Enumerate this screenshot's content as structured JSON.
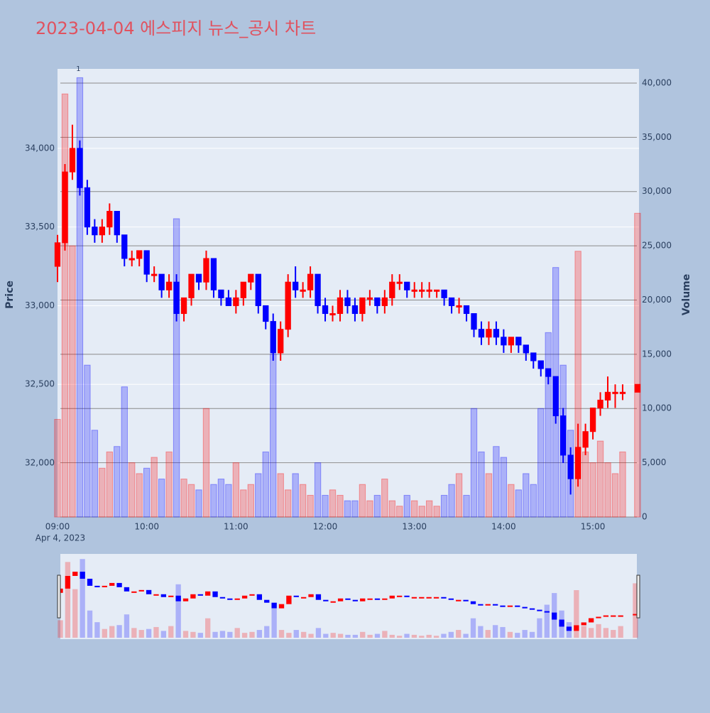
{
  "chart_data": {
    "type": "candlestick",
    "title": "2023-04-04 에스피지 뉴스_공시 차트",
    "y_label": "Price",
    "y2_label": "Volume",
    "date_label": "Apr 4, 2023",
    "annotation": {
      "x": "09:15",
      "text": "1"
    },
    "up_color": "#ff0000",
    "down_color": "#0000ff",
    "grid": true,
    "range_slider": true,
    "xlim": [
      "09:00",
      "15:31"
    ],
    "xticks": [
      "09:00",
      "10:00",
      "11:00",
      "12:00",
      "13:00",
      "14:00",
      "15:00"
    ],
    "ylim": [
      31657,
      34505
    ],
    "yticks": [
      {
        "value": 32000,
        "label": "32,000"
      },
      {
        "value": 32500,
        "label": "32,500"
      },
      {
        "value": 33000,
        "label": "33,000"
      },
      {
        "value": 33500,
        "label": "33,500"
      },
      {
        "value": 34000,
        "label": "34,000"
      }
    ],
    "y2lim": [
      0,
      41309
    ],
    "y2ticks": [
      0,
      {
        "value": 5000,
        "label": "5,000"
      },
      {
        "value": 10000,
        "label": "10,000"
      },
      {
        "value": 15000,
        "label": "15,000"
      },
      {
        "value": 20000,
        "label": "20,000"
      },
      {
        "value": 25000,
        "label": "25,000"
      },
      {
        "value": 30000,
        "label": "30,000"
      },
      {
        "value": 35000,
        "label": "35,000"
      },
      {
        "value": 40000,
        "label": "40,000"
      }
    ],
    "x": [
      "09:00",
      "09:05",
      "09:10",
      "09:15",
      "09:20",
      "09:25",
      "09:30",
      "09:35",
      "09:40",
      "09:45",
      "09:50",
      "09:55",
      "10:00",
      "10:05",
      "10:10",
      "10:15",
      "10:20",
      "10:25",
      "10:30",
      "10:35",
      "10:40",
      "10:45",
      "10:50",
      "10:55",
      "11:00",
      "11:05",
      "11:10",
      "11:15",
      "11:20",
      "11:25",
      "11:30",
      "11:35",
      "11:40",
      "11:45",
      "11:50",
      "11:55",
      "12:00",
      "12:05",
      "12:10",
      "12:15",
      "12:20",
      "12:25",
      "12:30",
      "12:35",
      "12:40",
      "12:45",
      "12:50",
      "12:55",
      "13:00",
      "13:05",
      "13:10",
      "13:15",
      "13:20",
      "13:25",
      "13:30",
      "13:35",
      "13:40",
      "13:45",
      "13:50",
      "13:55",
      "14:00",
      "14:05",
      "14:10",
      "14:15",
      "14:20",
      "14:25",
      "14:30",
      "14:35",
      "14:40",
      "14:45",
      "14:50",
      "14:55",
      "15:00",
      "15:05",
      "15:10",
      "15:15",
      "15:20",
      "15:30"
    ],
    "open": [
      33250,
      33400,
      33850,
      34000,
      33750,
      33500,
      33450,
      33500,
      33600,
      33450,
      33300,
      33300,
      33350,
      33200,
      33200,
      33100,
      33150,
      32950,
      33050,
      33200,
      33150,
      33300,
      33100,
      33050,
      33000,
      33050,
      33150,
      33200,
      33000,
      32900,
      32700,
      32850,
      33150,
      33100,
      33100,
      33200,
      33000,
      32950,
      32950,
      33050,
      33000,
      32950,
      33050,
      33050,
      33000,
      33050,
      33150,
      33150,
      33100,
      33100,
      33100,
      33100,
      33100,
      33050,
      33000,
      33000,
      32950,
      32850,
      32800,
      32850,
      32800,
      32750,
      32800,
      32750,
      32700,
      32650,
      32600,
      32550,
      32300,
      32050,
      31900,
      32100,
      32200,
      32350,
      32400,
      32450,
      32450,
      32450
    ],
    "high": [
      33450,
      33900,
      34150,
      34050,
      33800,
      33550,
      33550,
      33650,
      33600,
      33450,
      33350,
      33350,
      33350,
      33250,
      33200,
      33200,
      33200,
      33050,
      33200,
      33200,
      33350,
      33300,
      33100,
      33100,
      33100,
      33150,
      33200,
      33200,
      33000,
      32950,
      32900,
      33200,
      33250,
      33150,
      33250,
      33200,
      33050,
      33000,
      33100,
      33100,
      33050,
      33050,
      33100,
      33050,
      33100,
      33200,
      33200,
      33150,
      33150,
      33150,
      33150,
      33100,
      33100,
      33050,
      33050,
      33000,
      32950,
      32900,
      32900,
      32900,
      32850,
      32800,
      32800,
      32750,
      32700,
      32650,
      32600,
      32550,
      32350,
      32100,
      32250,
      32250,
      32350,
      32450,
      32550,
      32500,
      32500,
      32500
    ],
    "low": [
      33150,
      33350,
      33800,
      33700,
      33450,
      33400,
      33400,
      33450,
      33400,
      33250,
      33250,
      33250,
      33150,
      33150,
      33050,
      33050,
      32900,
      32900,
      33000,
      33100,
      33100,
      33050,
      33000,
      33000,
      32950,
      33000,
      33100,
      32950,
      32850,
      32650,
      32650,
      32800,
      33050,
      33050,
      33050,
      32950,
      32900,
      32900,
      32900,
      32950,
      32900,
      32900,
      33000,
      32950,
      32950,
      33000,
      33100,
      33050,
      33050,
      33050,
      33050,
      33050,
      33000,
      32950,
      32950,
      32900,
      32800,
      32750,
      32750,
      32750,
      32700,
      32700,
      32700,
      32650,
      32600,
      32550,
      32500,
      32250,
      32000,
      31800,
      31850,
      32050,
      32150,
      32300,
      32350,
      32350,
      32400,
      32450
    ],
    "close": [
      33400,
      33850,
      34000,
      33750,
      33500,
      33450,
      33500,
      33600,
      33450,
      33300,
      33300,
      33350,
      33200,
      33200,
      33100,
      33150,
      32950,
      33050,
      33200,
      33150,
      33300,
      33100,
      33050,
      33000,
      33050,
      33150,
      33200,
      33000,
      32900,
      32700,
      32850,
      33150,
      33100,
      33100,
      33200,
      33000,
      32950,
      32950,
      33050,
      33000,
      32950,
      33050,
      33050,
      33000,
      33050,
      33150,
      33150,
      33100,
      33100,
      33100,
      33100,
      33100,
      33050,
      33000,
      33000,
      32950,
      32850,
      32800,
      32850,
      32800,
      32750,
      32800,
      32750,
      32700,
      32650,
      32600,
      32550,
      32300,
      32050,
      31900,
      32100,
      32200,
      32350,
      32400,
      32450,
      32450,
      32450,
      32500
    ],
    "volume": [
      9000,
      39000,
      25000,
      40500,
      14000,
      8000,
      4500,
      6000,
      6500,
      12000,
      5000,
      4000,
      4500,
      5500,
      3500,
      6000,
      27500,
      3500,
      3000,
      2500,
      10000,
      3000,
      3500,
      3000,
      5000,
      2500,
      3000,
      4000,
      6000,
      15000,
      4000,
      2500,
      4000,
      3000,
      2000,
      5000,
      2000,
      2500,
      2000,
      1500,
      1500,
      3000,
      1500,
      2000,
      3500,
      1500,
      1000,
      2000,
      1500,
      1000,
      1500,
      1000,
      2000,
      3000,
      4000,
      2000,
      10000,
      6000,
      4000,
      6500,
      5500,
      3000,
      2500,
      4000,
      3000,
      10000,
      17000,
      23000,
      14000,
      8000,
      24500,
      6000,
      5000,
      7000,
      5000,
      4000,
      6000,
      28000
    ]
  }
}
